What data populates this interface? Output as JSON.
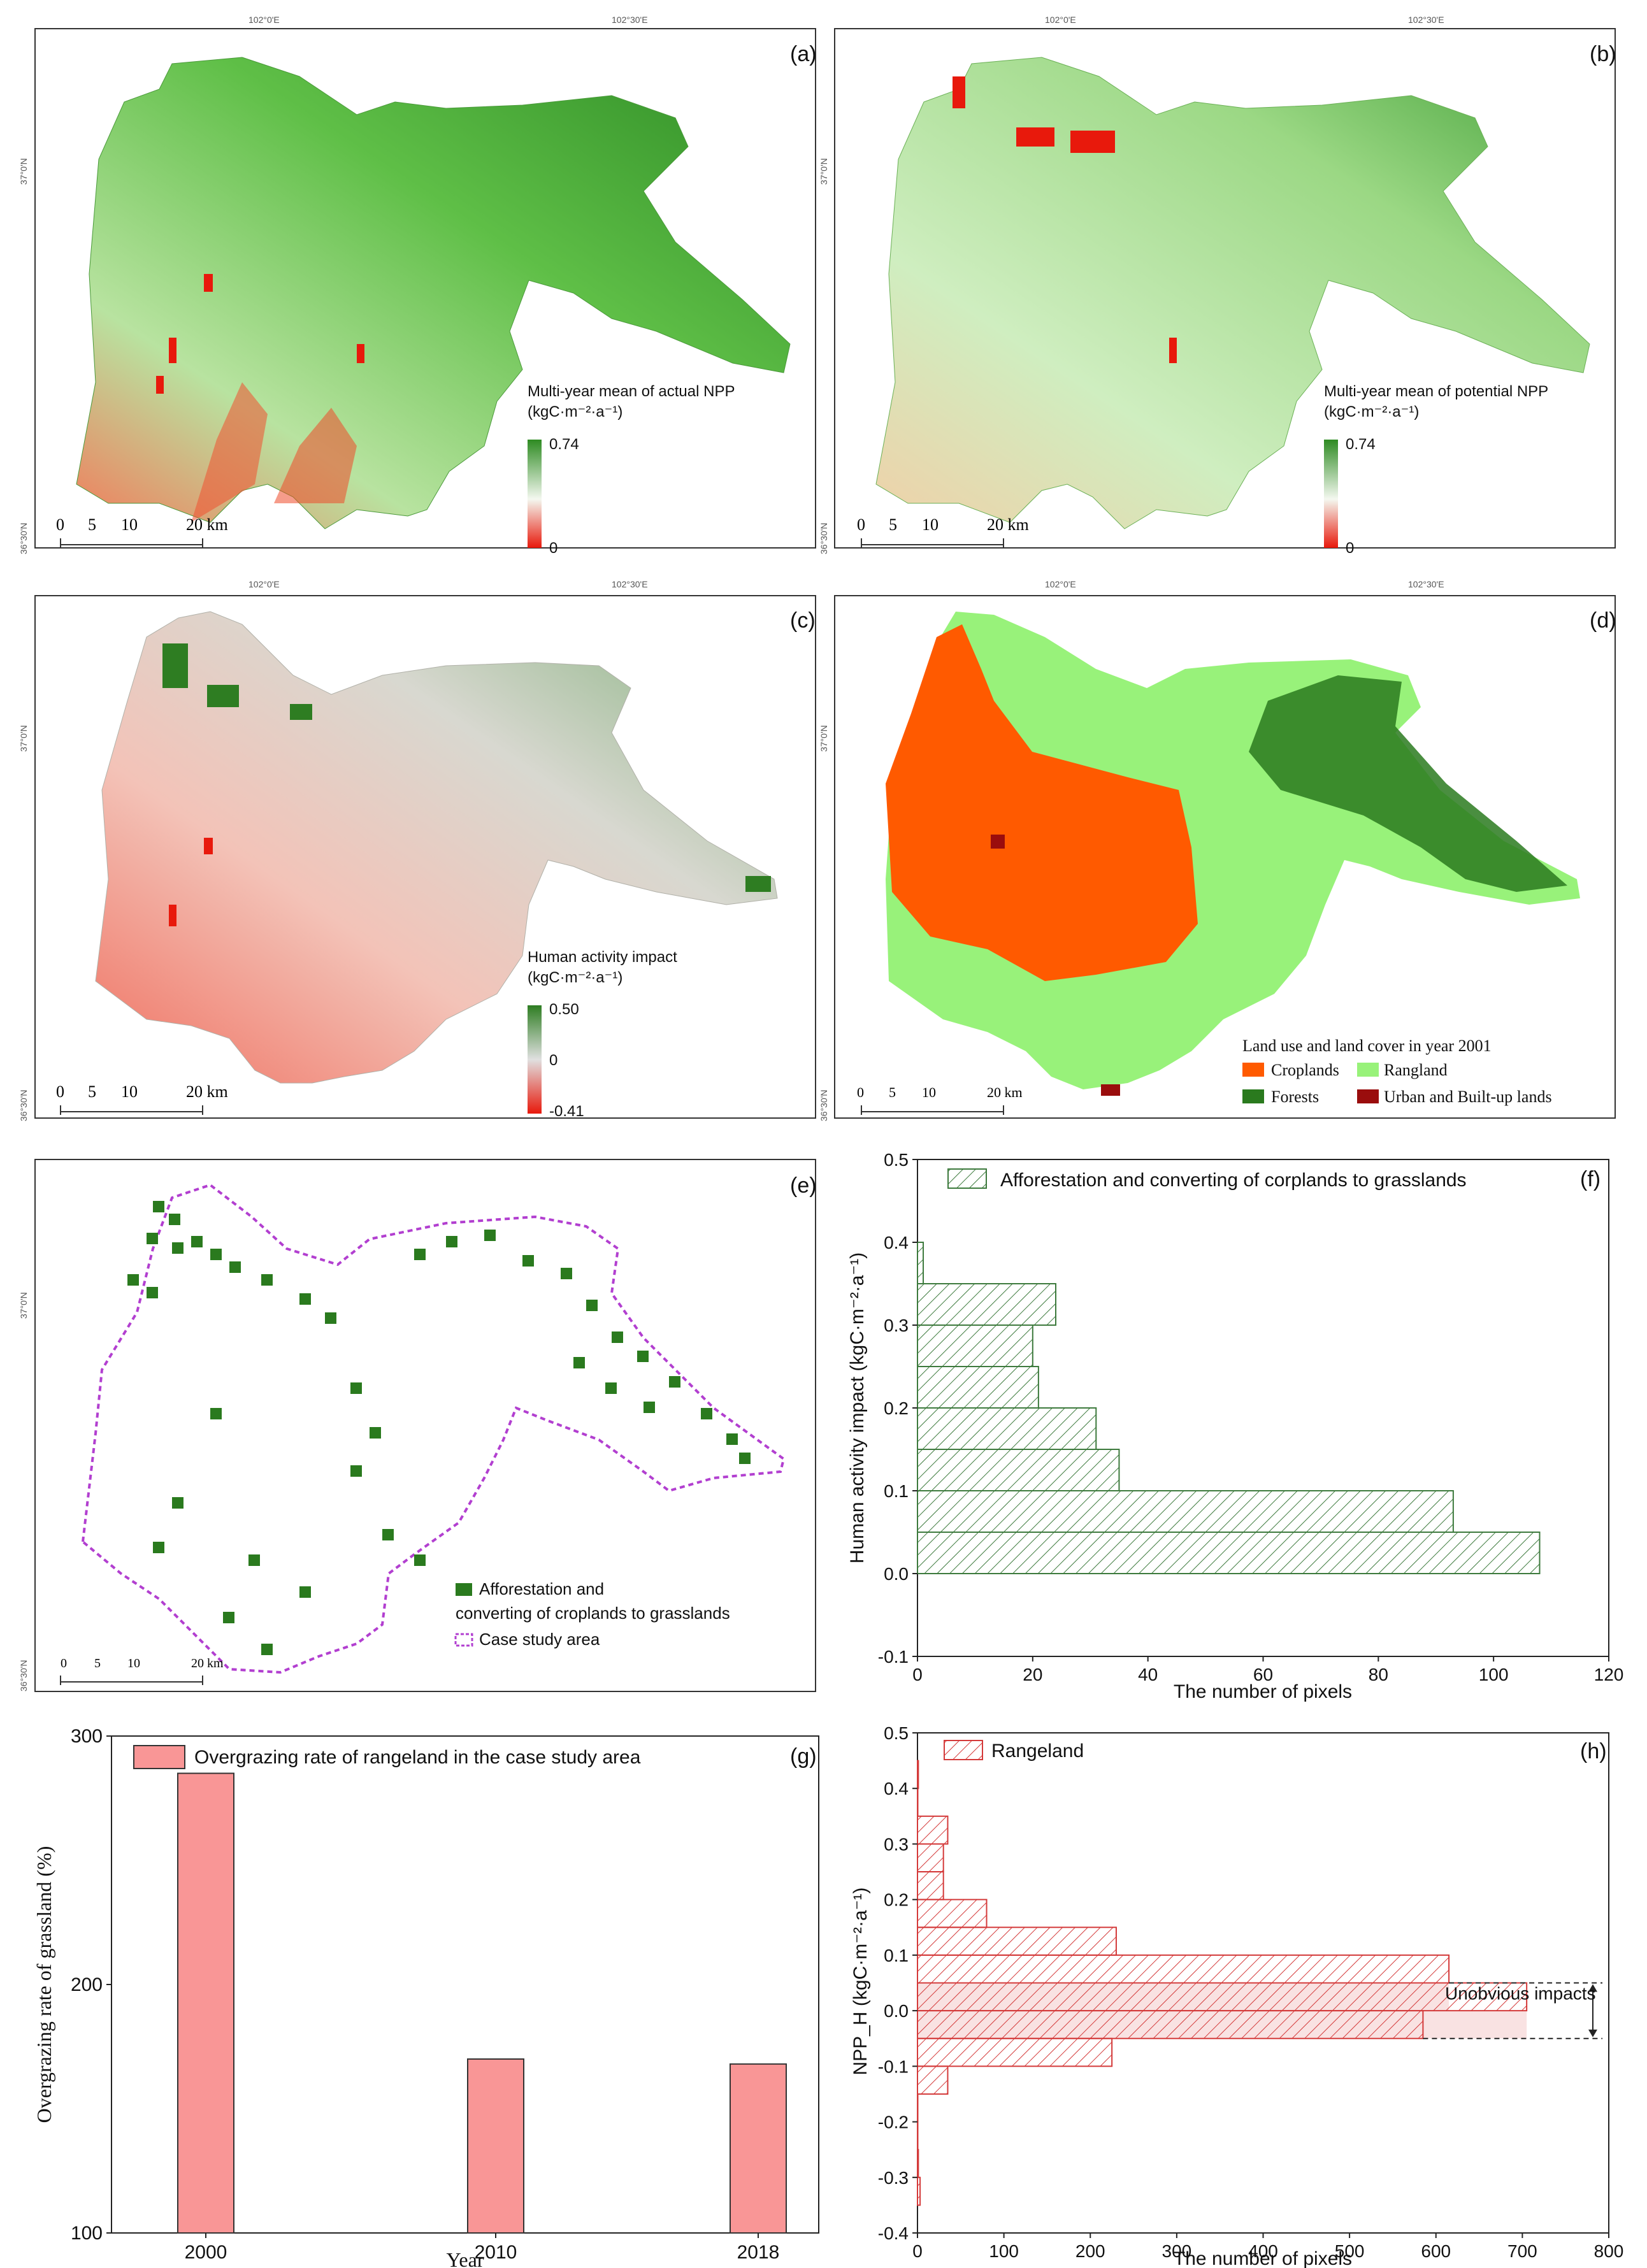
{
  "panels": {
    "a": {
      "tag": "(a)",
      "legend_title": "Multi-year mean of actual NPP",
      "legend_unit": "(kgC·m⁻²·a⁻¹)",
      "legend_max": "0.74",
      "legend_min": "0",
      "colors": {
        "high": "#2e8b22",
        "mid": "#f4f8f0",
        "low": "#e8190c"
      },
      "top_ticks": [
        "102°0'E",
        "102°30'E"
      ],
      "left_ticks": [
        "37°0'N",
        "36°30'N"
      ]
    },
    "b": {
      "tag": "(b)",
      "legend_title": "Multi-year mean of potential NPP",
      "legend_unit": "(kgC·m⁻²·a⁻¹)",
      "legend_max": "0.74",
      "legend_min": "0",
      "colors": {
        "high": "#2e8b22",
        "mid": "#f4f8f0",
        "low": "#e8190c"
      },
      "top_ticks": [
        "102°0'E",
        "102°30'E"
      ],
      "left_ticks": [
        "37°0'N",
        "36°30'N"
      ]
    },
    "c": {
      "tag": "(c)",
      "legend_title": "Human activity impact",
      "legend_unit": "(kgC·m⁻²·a⁻¹)",
      "legend_max": "0.50",
      "legend_mid": "0",
      "legend_min": "-0.41",
      "colors": {
        "high": "#2e7d22",
        "mid": "#e0e0e0",
        "low": "#e8190c"
      },
      "top_ticks": [
        "102°0'E",
        "102°30'E"
      ],
      "left_ticks": [
        "37°0'N",
        "36°30'N"
      ]
    },
    "d": {
      "tag": "(d)",
      "legend_title": "Land use and land cover in year 2001",
      "classes": [
        {
          "label": "Croplands",
          "color": "#ff5a00"
        },
        {
          "label": "Rangland",
          "color": "#98f27a"
        },
        {
          "label": "Forests",
          "color": "#2a7a1e"
        },
        {
          "label": "Urban and Built-up lands",
          "color": "#9a0d0d"
        }
      ],
      "top_ticks": [
        "102°0'E",
        "102°30'E"
      ],
      "left_ticks": [
        "37°0'N",
        "36°30'N"
      ]
    },
    "e": {
      "tag": "(e)",
      "legend_items": [
        {
          "label_line1": "Afforestation and",
          "label_line2": "converting of croplands to grasslands",
          "color": "#2a7a1e"
        },
        {
          "label_line1": "Case study area",
          "color": "#b23fd0"
        }
      ],
      "left_ticks": [
        "37°0'N",
        "36°30'N"
      ]
    },
    "scalebar": {
      "labels": [
        "0",
        "5",
        "10",
        "20 km"
      ]
    }
  },
  "chart_data": [
    {
      "id": "f",
      "type": "bar",
      "orientation": "horizontal",
      "tag": "(f)",
      "legend": "Afforestation and converting of corplands to grasslands",
      "color": "#3d7a3d",
      "bin_width": 0.05,
      "bins": [
        0.0,
        0.05,
        0.1,
        0.15,
        0.2,
        0.25,
        0.3,
        0.35
      ],
      "values": [
        108,
        93,
        35,
        31,
        21,
        20,
        24,
        1
      ],
      "xlabel": "The number of pixels",
      "ylabel": "Human activity impact (kgC·m⁻²·a⁻¹)",
      "xlim": [
        0,
        120
      ],
      "ylim": [
        -0.1,
        0.5
      ],
      "xticks": [
        "0",
        "20",
        "40",
        "60",
        "80",
        "100",
        "120"
      ],
      "yticks": [
        "-0.1",
        "0.0",
        "0.1",
        "0.2",
        "0.3",
        "0.4",
        "0.5"
      ]
    },
    {
      "id": "g",
      "type": "bar",
      "tag": "(g)",
      "legend": "Overgrazing rate of rangeland in the case study area",
      "color": "#f99696",
      "categories": [
        "2000",
        "2010",
        "2018"
      ],
      "values": [
        285,
        170,
        168
      ],
      "xlabel": "Year",
      "ylabel": "Overgrazing rate of grassland (%)",
      "ylim": [
        100,
        300
      ],
      "yticks": [
        "100",
        "200",
        "300"
      ]
    },
    {
      "id": "h",
      "type": "bar",
      "orientation": "horizontal",
      "tag": "(h)",
      "legend": "Rangeland",
      "color": "#d43a3a",
      "bin_width": 0.05,
      "bins": [
        -0.35,
        -0.3,
        -0.25,
        -0.2,
        -0.15,
        -0.1,
        -0.05,
        0.0,
        0.05,
        0.1,
        0.15,
        0.2,
        0.25,
        0.3,
        0.35,
        0.4
      ],
      "values": [
        3,
        1,
        0,
        0,
        35,
        225,
        585,
        705,
        615,
        230,
        80,
        30,
        30,
        35,
        0,
        1
      ],
      "xlabel": "The number of pixels",
      "ylabel": "NPP_H (kgC·m⁻²·a⁻¹)",
      "annotation": "Unobvious impacts",
      "annotation_range": [
        -0.05,
        0.05
      ],
      "xlim": [
        0,
        800
      ],
      "ylim": [
        -0.4,
        0.5
      ],
      "xticks": [
        "0",
        "100",
        "200",
        "300",
        "400",
        "500",
        "600",
        "700",
        "800"
      ],
      "yticks": [
        "-0.4",
        "-0.3",
        "-0.2",
        "-0.1",
        "0.0",
        "0.1",
        "0.2",
        "0.3",
        "0.4",
        "0.5"
      ]
    }
  ]
}
